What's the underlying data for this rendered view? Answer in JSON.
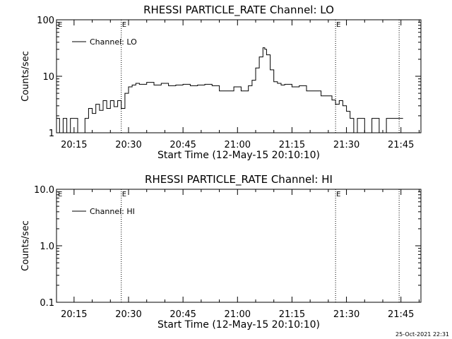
{
  "chart_data": [
    {
      "type": "line",
      "title": "RHESSI PARTICLE_RATE Channel: LO",
      "xlabel": "Start Time (12-May-15 20:10:10)",
      "ylabel": "Counts/sec",
      "y_scale": "log",
      "ylim": [
        1,
        100
      ],
      "xlim": [
        "20:10:10",
        "21:50:30"
      ],
      "x_ticks": [
        "20:15",
        "20:30",
        "20:45",
        "21:00",
        "21:15",
        "21:30",
        "21:45"
      ],
      "y_ticks": [
        "1",
        "10",
        "100"
      ],
      "legend": "Channel: LO",
      "legend_position": "top-left",
      "event_markers": [
        {
          "time": "20:28:00",
          "label": "E"
        },
        {
          "time": "21:27:00",
          "label": "E"
        },
        {
          "time": "21:44:30",
          "label": ""
        }
      ],
      "series": [
        {
          "name": "Channel: LO",
          "x": [
            "20:10:10",
            "20:11:00",
            "20:12:00",
            "20:13:00",
            "20:14:00",
            "20:15:00",
            "20:16:00",
            "20:17:00",
            "20:18:00",
            "20:19:00",
            "20:20:00",
            "20:21:00",
            "20:22:00",
            "20:23:00",
            "20:24:00",
            "20:25:00",
            "20:26:00",
            "20:27:00",
            "20:28:00",
            "20:29:00",
            "20:30:00",
            "20:31:00",
            "20:32:00",
            "20:33:00",
            "20:35:00",
            "20:37:00",
            "20:39:00",
            "20:41:00",
            "20:43:00",
            "20:45:00",
            "20:47:00",
            "20:49:00",
            "20:51:00",
            "20:53:00",
            "20:55:00",
            "20:57:00",
            "20:59:00",
            "21:01:00",
            "21:03:00",
            "21:04:00",
            "21:05:00",
            "21:06:00",
            "21:07:00",
            "21:07:30",
            "21:08:00",
            "21:09:00",
            "21:10:00",
            "21:11:00",
            "21:12:00",
            "21:13:00",
            "21:15:00",
            "21:17:00",
            "21:19:00",
            "21:21:00",
            "21:23:00",
            "21:25:00",
            "21:26:00",
            "21:27:00",
            "21:28:00",
            "21:29:00",
            "21:30:00",
            "21:31:00",
            "21:32:00",
            "21:33:00",
            "21:35:00",
            "21:37:00",
            "21:39:00",
            "21:41:00",
            "21:43:00",
            "21:45:00"
          ],
          "values": [
            1.8,
            1,
            1.8,
            1,
            1.8,
            1.8,
            1,
            1,
            1.8,
            2.7,
            2.2,
            3.2,
            2.5,
            3.7,
            2.7,
            3.7,
            2.9,
            3.7,
            2.7,
            5,
            6.5,
            7,
            7.5,
            7.2,
            7.8,
            7,
            7.5,
            6.8,
            7,
            7.2,
            6.8,
            7,
            7.2,
            6.8,
            5.5,
            5.5,
            6.5,
            5.5,
            6.8,
            8.5,
            14,
            22,
            32,
            30,
            24,
            13,
            8,
            7.5,
            7,
            7.2,
            6.5,
            6.8,
            5.5,
            5.5,
            4.5,
            4.5,
            3.8,
            3.2,
            3.7,
            3,
            2.4,
            1.8,
            1,
            1.8,
            1,
            1.8,
            1,
            1.8,
            1.8,
            1.8
          ]
        }
      ]
    },
    {
      "type": "line",
      "title": "RHESSI PARTICLE_RATE Channel: HI",
      "xlabel": "Start Time (12-May-15 20:10:10)",
      "ylabel": "Counts/sec",
      "y_scale": "log",
      "ylim": [
        0.1,
        10
      ],
      "xlim": [
        "20:10:10",
        "21:50:30"
      ],
      "x_ticks": [
        "20:15",
        "20:30",
        "20:45",
        "21:00",
        "21:15",
        "21:30",
        "21:45"
      ],
      "y_ticks": [
        "0.1",
        "1.0",
        "10.0"
      ],
      "legend": "Channel: HI",
      "legend_position": "top-left",
      "event_markers": [
        {
          "time": "20:28:00",
          "label": "E"
        },
        {
          "time": "21:27:00",
          "label": "E"
        },
        {
          "time": "21:44:30",
          "label": ""
        }
      ],
      "series": [
        {
          "name": "Channel: HI",
          "x": [],
          "values": []
        }
      ]
    }
  ],
  "corner_marker": "E",
  "timestamp": "25-Oct-2021 22:31"
}
